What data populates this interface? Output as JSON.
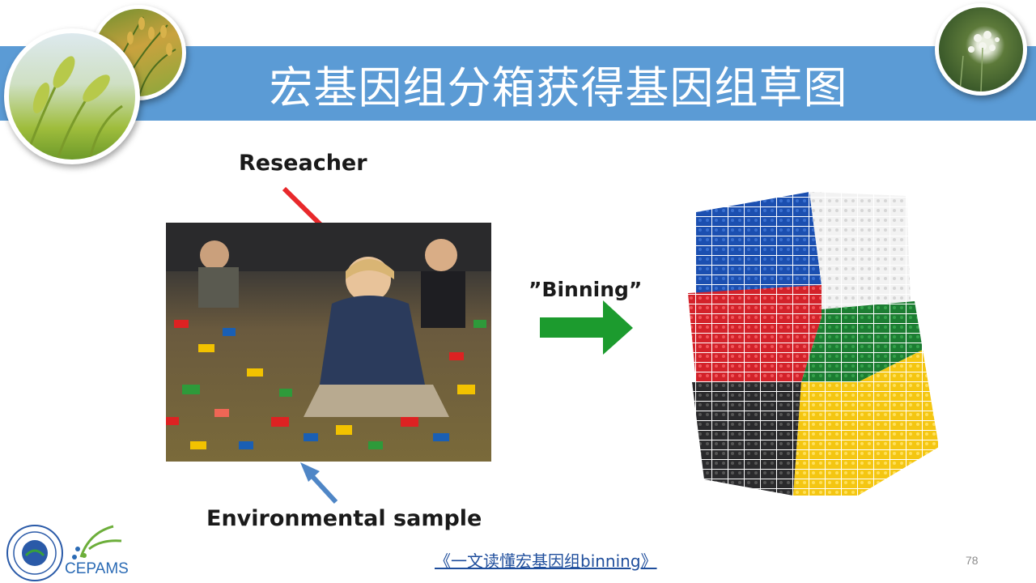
{
  "slide": {
    "title": "宏基因组分箱获得基因组草图",
    "page_number": "78",
    "footer_link": "《一文读懂宏基因组binning》"
  },
  "figure": {
    "researcher_label": "Reseacher",
    "environmental_label": "Environmental sample",
    "binning_label": "”Binning”"
  },
  "logos": {
    "cepams_text": "CEPAMS"
  },
  "colors": {
    "title_bar": "#5b9bd5",
    "researcher_arrow": "#e8282b",
    "sample_arrow": "#4f86c6",
    "binning_arrow": "#1c9b2e",
    "link": "#1f4e9c"
  },
  "icons": {
    "left_photos": [
      "barley-photo",
      "rice-photo"
    ],
    "right_photo": "wildflower-photo",
    "logos": [
      "university-seal-logo",
      "cepams-logo"
    ]
  }
}
